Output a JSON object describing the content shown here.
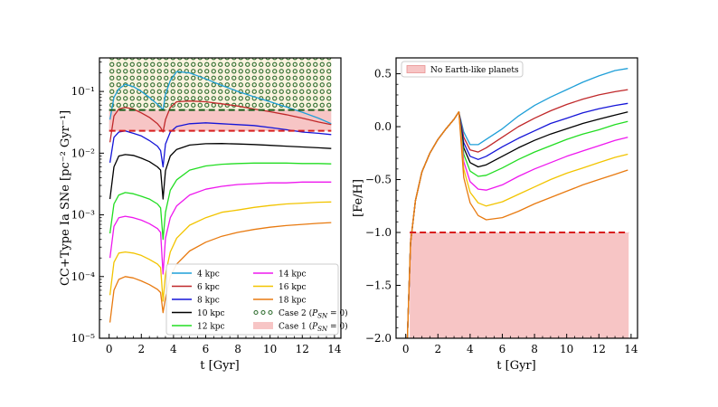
{
  "chart_data": [
    {
      "type": "line",
      "yscale": "log",
      "xlabel": "t [Gyr]",
      "ylabel": "CC+Type Ia SNe [pc⁻² Gyr⁻¹]",
      "xlim": [
        -0.6,
        14.4
      ],
      "ylim": [
        1e-05,
        0.35
      ],
      "xticks": [
        "0",
        "2",
        "4",
        "6",
        "8",
        "10",
        "12",
        "14"
      ],
      "yticks": [
        "10⁻⁵",
        "10⁻⁴",
        "10⁻³",
        "10⁻²",
        "10⁻¹"
      ],
      "legend_position": "lower-right",
      "x": [
        0.05,
        0.3,
        0.6,
        1.0,
        1.5,
        2.0,
        2.5,
        3.0,
        3.2,
        3.35,
        3.5,
        3.8,
        4.2,
        5.0,
        6.0,
        7.0,
        8.0,
        9.0,
        10.0,
        11.0,
        12.0,
        13.0,
        13.8
      ],
      "series": [
        {
          "name": "4 kpc",
          "color": "#1f9fd8",
          "values": [
            0.035,
            0.08,
            0.11,
            0.13,
            0.12,
            0.1,
            0.08,
            0.062,
            0.056,
            0.05,
            0.09,
            0.15,
            0.21,
            0.2,
            0.16,
            0.125,
            0.1,
            0.082,
            0.068,
            0.056,
            0.046,
            0.037,
            0.03
          ]
        },
        {
          "name": "6 kpc",
          "color": "#c0282a",
          "values": [
            0.015,
            0.04,
            0.052,
            0.055,
            0.052,
            0.045,
            0.038,
            0.03,
            0.026,
            0.022,
            0.035,
            0.055,
            0.068,
            0.07,
            0.068,
            0.063,
            0.058,
            0.052,
            0.047,
            0.042,
            0.037,
            0.032,
            0.029
          ]
        },
        {
          "name": "8 kpc",
          "color": "#1515d8",
          "values": [
            0.007,
            0.018,
            0.022,
            0.023,
            0.021,
            0.019,
            0.016,
            0.013,
            0.011,
            0.006,
            0.014,
            0.022,
            0.027,
            0.03,
            0.031,
            0.03,
            0.029,
            0.028,
            0.026,
            0.024,
            0.022,
            0.021,
            0.02
          ]
        },
        {
          "name": "10 kpc",
          "color": "#000000",
          "values": [
            0.0018,
            0.006,
            0.009,
            0.0095,
            0.0092,
            0.0083,
            0.0073,
            0.006,
            0.0053,
            0.0018,
            0.0052,
            0.009,
            0.0115,
            0.0135,
            0.0142,
            0.0143,
            0.0141,
            0.0138,
            0.0134,
            0.013,
            0.0126,
            0.0122,
            0.0119
          ]
        },
        {
          "name": "12 kpc",
          "color": "#22dd22",
          "values": [
            0.0005,
            0.0015,
            0.0021,
            0.0023,
            0.0022,
            0.002,
            0.0018,
            0.0015,
            0.0013,
            0.0004,
            0.0011,
            0.0025,
            0.0037,
            0.0053,
            0.0062,
            0.0066,
            0.0068,
            0.0069,
            0.0069,
            0.0069,
            0.0068,
            0.0068,
            0.0067
          ]
        },
        {
          "name": "14 kpc",
          "color": "#ee18ee",
          "values": [
            0.0002,
            0.00065,
            0.0009,
            0.00095,
            0.0009,
            0.00082,
            0.00072,
            0.0006,
            0.00052,
            0.00011,
            0.00042,
            0.0009,
            0.0014,
            0.0021,
            0.0026,
            0.0029,
            0.0031,
            0.0032,
            0.0033,
            0.0033,
            0.0034,
            0.0034,
            0.0034
          ]
        },
        {
          "name": "16 kpc",
          "color": "#f2c400",
          "values": [
            5e-05,
            0.00017,
            0.00024,
            0.00025,
            0.00024,
            0.00022,
            0.00019,
            0.00016,
            0.00014,
            4e-05,
            0.00011,
            0.00025,
            0.00042,
            0.00068,
            0.0009,
            0.0011,
            0.0012,
            0.00132,
            0.00142,
            0.0015,
            0.00155,
            0.0016,
            0.00162
          ]
        },
        {
          "name": "18 kpc",
          "color": "#e87a10",
          "values": [
            1.8e-05,
            6e-05,
            9e-05,
            0.0001,
            9.5e-05,
            8.5e-05,
            7.4e-05,
            6.2e-05,
            5.5e-05,
            2.6e-05,
            4.5e-05,
            0.0001,
            0.00016,
            0.00026,
            0.00036,
            0.00045,
            0.00052,
            0.00058,
            0.00063,
            0.00067,
            0.0007,
            0.00073,
            0.00075
          ]
        }
      ],
      "regions": [
        {
          "name": "Case 2 (P_SN = 0)",
          "kind": "dotted-band",
          "color": "#2f6d2f",
          "fill": "#fbf3df",
          "y_from": 0.05,
          "y_to": 0.35
        },
        {
          "name": "Case 1 (P_SN = 0)",
          "kind": "band",
          "color": "#f7c5c5",
          "y_from": 0.023,
          "y_to": 0.05
        }
      ],
      "hlines": [
        {
          "y": 0.05,
          "color": "#1a5c1a",
          "style": "dashed"
        },
        {
          "y": 0.023,
          "color": "#d81e1e",
          "style": "dashed"
        }
      ]
    },
    {
      "type": "line",
      "xlabel": "t [Gyr]",
      "ylabel": "[Fe/H]",
      "xlim": [
        -0.6,
        14.4
      ],
      "ylim": [
        -2.0,
        0.65
      ],
      "xticks": [
        "0",
        "2",
        "4",
        "6",
        "8",
        "10",
        "12",
        "14"
      ],
      "yticks": [
        "−2.0",
        "−1.5",
        "−1.0",
        "−0.5",
        "0.0",
        "0.5"
      ],
      "legend_position": "top-left",
      "x": [
        0.1,
        0.3,
        0.6,
        1.0,
        1.5,
        2.0,
        2.5,
        3.0,
        3.3,
        3.6,
        4.0,
        4.5,
        5.0,
        6.0,
        7.0,
        8.0,
        9.0,
        10.0,
        11.0,
        12.0,
        13.0,
        13.8
      ],
      "shared_rise": [
        -2.0,
        -1.1,
        -0.7,
        -0.43,
        -0.25,
        -0.12,
        -0.02,
        0.07,
        0.14
      ],
      "series": [
        {
          "name": "4 kpc",
          "color": "#1f9fd8",
          "values": [
            -2.0,
            -1.1,
            -0.7,
            -0.43,
            -0.25,
            -0.12,
            -0.02,
            0.07,
            0.14,
            -0.05,
            -0.17,
            -0.17,
            -0.12,
            -0.02,
            0.1,
            0.2,
            0.28,
            0.35,
            0.42,
            0.48,
            0.53,
            0.55
          ]
        },
        {
          "name": "6 kpc",
          "color": "#c0282a",
          "values": [
            -2.0,
            -1.1,
            -0.7,
            -0.43,
            -0.25,
            -0.12,
            -0.02,
            0.07,
            0.14,
            -0.1,
            -0.22,
            -0.24,
            -0.2,
            -0.1,
            0.0,
            0.08,
            0.15,
            0.21,
            0.26,
            0.3,
            0.33,
            0.35
          ]
        },
        {
          "name": "8 kpc",
          "color": "#1515d8",
          "values": [
            -2.0,
            -1.1,
            -0.7,
            -0.43,
            -0.25,
            -0.12,
            -0.02,
            0.07,
            0.14,
            -0.15,
            -0.28,
            -0.31,
            -0.28,
            -0.19,
            -0.11,
            -0.04,
            0.03,
            0.08,
            0.13,
            0.17,
            0.2,
            0.22
          ]
        },
        {
          "name": "10 kpc",
          "color": "#000000",
          "values": [
            -2.0,
            -1.1,
            -0.7,
            -0.43,
            -0.25,
            -0.12,
            -0.02,
            0.07,
            0.14,
            -0.2,
            -0.34,
            -0.38,
            -0.36,
            -0.28,
            -0.2,
            -0.13,
            -0.07,
            -0.02,
            0.03,
            0.07,
            0.11,
            0.14
          ]
        },
        {
          "name": "12 kpc",
          "color": "#22dd22",
          "values": [
            -2.0,
            -1.1,
            -0.7,
            -0.43,
            -0.25,
            -0.12,
            -0.02,
            0.07,
            0.14,
            -0.26,
            -0.42,
            -0.47,
            -0.46,
            -0.39,
            -0.31,
            -0.24,
            -0.18,
            -0.12,
            -0.07,
            -0.03,
            0.02,
            0.05
          ]
        },
        {
          "name": "14 kpc",
          "color": "#ee18ee",
          "values": [
            -2.0,
            -1.1,
            -0.7,
            -0.43,
            -0.25,
            -0.12,
            -0.02,
            0.07,
            0.14,
            -0.33,
            -0.52,
            -0.59,
            -0.6,
            -0.55,
            -0.47,
            -0.4,
            -0.34,
            -0.28,
            -0.23,
            -0.18,
            -0.13,
            -0.1
          ]
        },
        {
          "name": "16 kpc",
          "color": "#f2c400",
          "values": [
            -2.0,
            -1.1,
            -0.7,
            -0.43,
            -0.25,
            -0.12,
            -0.02,
            0.07,
            0.14,
            -0.4,
            -0.62,
            -0.72,
            -0.75,
            -0.71,
            -0.64,
            -0.57,
            -0.5,
            -0.44,
            -0.39,
            -0.34,
            -0.29,
            -0.26
          ]
        },
        {
          "name": "18 kpc",
          "color": "#e87a10",
          "values": [
            -2.0,
            -1.1,
            -0.7,
            -0.43,
            -0.25,
            -0.12,
            -0.02,
            0.07,
            0.14,
            -0.48,
            -0.72,
            -0.84,
            -0.88,
            -0.86,
            -0.8,
            -0.73,
            -0.67,
            -0.61,
            -0.55,
            -0.5,
            -0.45,
            -0.41
          ]
        }
      ],
      "regions": [
        {
          "name": "No Earth-like planets",
          "kind": "band",
          "color": "#f7c5c5",
          "y_from": -2.0,
          "y_to": -1.0,
          "x_from": 0.25,
          "x_to": 13.85
        }
      ],
      "hlines": [
        {
          "y": -1.0,
          "color": "#d81e1e",
          "style": "dashed",
          "x_from": 0.25,
          "x_to": 13.85
        }
      ]
    }
  ],
  "legend_left": {
    "entries": [
      {
        "label": "4 kpc",
        "kind": "line",
        "color": "#1f9fd8"
      },
      {
        "label": "14 kpc",
        "kind": "line",
        "color": "#ee18ee"
      },
      {
        "label": "6 kpc",
        "kind": "line",
        "color": "#c0282a"
      },
      {
        "label": "16 kpc",
        "kind": "line",
        "color": "#f2c400"
      },
      {
        "label": "8 kpc",
        "kind": "line",
        "color": "#1515d8"
      },
      {
        "label": "18 kpc",
        "kind": "line",
        "color": "#e87a10"
      },
      {
        "label": "10 kpc",
        "kind": "line",
        "color": "#000000"
      },
      {
        "label_pre": "Case 2 (",
        "label_math": "P",
        "label_sub": "SN",
        "label_post": " = 0)",
        "kind": "dots",
        "color": "#2f6d2f"
      },
      {
        "label": "12 kpc",
        "kind": "line",
        "color": "#22dd22"
      },
      {
        "label_pre": "Case 1 (",
        "label_math": "P",
        "label_sub": "SN",
        "label_post": " = 0)",
        "kind": "patch",
        "color": "#f7c5c5"
      }
    ]
  },
  "legend_right": {
    "entries": [
      {
        "label": "No Earth-like planets",
        "kind": "patch",
        "color": "#f7c5c5",
        "edge": "#e89090"
      }
    ]
  }
}
